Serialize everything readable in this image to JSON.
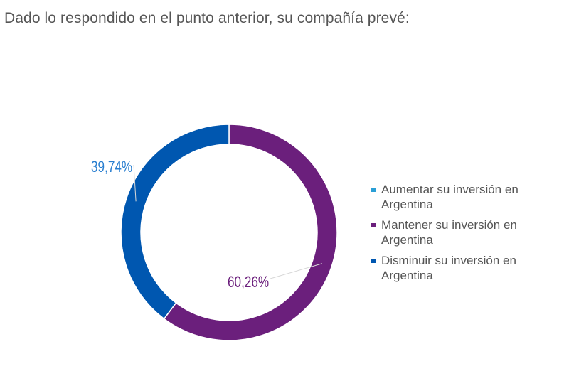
{
  "question": "Dado lo respondido en el punto anterior, su compañía prevé:",
  "chart_data": {
    "type": "pie",
    "donut": true,
    "legend_position": "right",
    "categories": [
      "Aumentar su inversión en Argentina",
      "Mantener su inversión en Argentina",
      "Disminuir su inversión en Argentina"
    ],
    "values": [
      0,
      60.26,
      39.74
    ],
    "value_labels": [
      "",
      "60,26%",
      "39,74%"
    ],
    "colors": [
      "#2a9fd6",
      "#6b1f7c",
      "#0057b0"
    ],
    "label_colors": [
      "#2a9fd6",
      "#6b1f7c",
      "#2a7fd0"
    ]
  }
}
